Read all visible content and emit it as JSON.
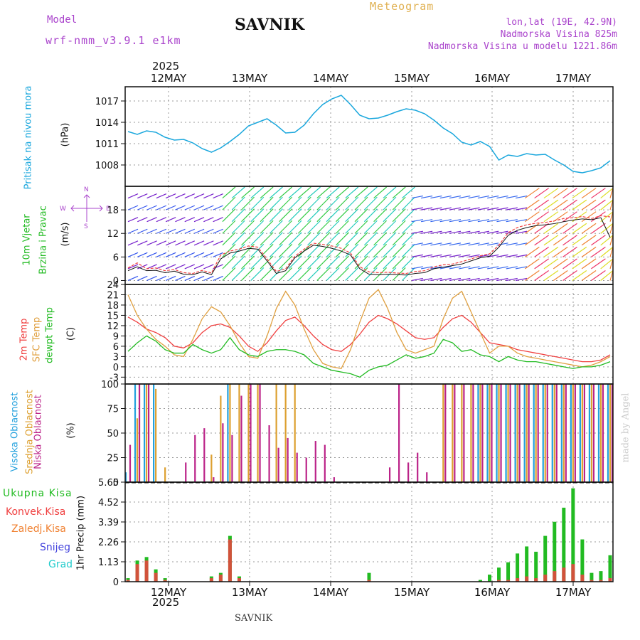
{
  "header": {
    "model_label": "Model",
    "model_name": "wrf-nmm_v3.9.1  e1km",
    "station": "SAVNIK",
    "product": "Meteogram",
    "lonlat": "lon,lat (19E, 42.9N)",
    "altitude": "Nadmorska Visina 825m",
    "model_altitude": "Nadmorska Visina u modelu 1221.86m",
    "year": "2025",
    "footer_station": "SAVNIK",
    "credit": "made by Angel"
  },
  "colors": {
    "pressure": "#1aa7dd",
    "temp2m": "#f04040",
    "sfc": "#e0a040",
    "dew": "#22bb22",
    "high_cloud": "#22a0dd",
    "mid_cloud": "#dda030",
    "low_cloud": "#bb2288",
    "total_precip": "#22bb22",
    "conv_precip": "#f04040",
    "frz_precip": "#f08030",
    "snow": "#4444dd",
    "hail": "#22cccc",
    "model_label": "#aa44cc",
    "product_label": "#e0b050"
  },
  "chart_data": [
    {
      "type": "line",
      "name": "pressure",
      "ylabel_main": "Pritisak na nivou mora",
      "ylabel_unit": "(hPa)",
      "x_ticks": [
        "12MAY",
        "13MAY",
        "14MAY",
        "15MAY",
        "16MAY",
        "17MAY"
      ],
      "ylim": [
        1005,
        1019
      ],
      "yticks": [
        1008,
        1011,
        1014,
        1017
      ],
      "grid": true,
      "series": [
        {
          "values": [
            1012.7,
            1012.3,
            1012.8,
            1012.6,
            1011.9,
            1011.5,
            1011.6,
            1011.1,
            1010.3,
            1009.8,
            1010.4,
            1011.3,
            1012.3,
            1013.5,
            1014.0,
            1014.5,
            1013.6,
            1012.5,
            1012.6,
            1013.6,
            1015.2,
            1016.5,
            1017.3,
            1017.8,
            1016.5,
            1015.0,
            1014.5,
            1014.6,
            1015.0,
            1015.5,
            1015.9,
            1015.7,
            1015.2,
            1014.3,
            1013.2,
            1012.4,
            1011.2,
            1010.8,
            1011.3,
            1010.6,
            1008.7,
            1009.4,
            1009.2,
            1009.6,
            1009.4,
            1009.5,
            1008.7,
            1008.0,
            1007.1,
            1006.9,
            1007.2,
            1007.6,
            1008.6
          ]
        }
      ]
    },
    {
      "type": "line",
      "name": "wind",
      "ylabel_main": "10m Vjetar",
      "ylabel_sub": "Brzina i Pravac",
      "ylabel_unit": "(m/s)",
      "compass": "N",
      "compass_w": "W",
      "compass_e": "E",
      "compass_s": "S",
      "ylim": [
        -1,
        24
      ],
      "yticks": [
        0,
        6,
        12,
        18
      ],
      "grid": true,
      "series": [
        {
          "values": [
            3.2,
            4.5,
            3.0,
            3.2,
            2.5,
            2.8,
            2.0,
            1.8,
            2.6,
            1.9,
            6.5,
            7.5,
            8.0,
            8.8,
            8.5,
            5.5,
            2.3,
            3.0,
            6.2,
            8.0,
            9.5,
            9.2,
            8.8,
            8.2,
            7.0,
            3.5,
            2.2,
            2.0,
            2.1,
            1.9,
            1.8,
            2.3,
            2.5,
            3.5,
            4.0,
            4.2,
            4.8,
            5.5,
            6.3,
            6.8,
            9.0,
            12.2,
            13.5,
            14.2,
            14.6,
            14.8,
            15.2,
            15.8,
            16.0,
            16.3,
            15.8,
            16.5,
            16.2
          ]
        },
        {
          "values": [
            2.5,
            3.5,
            2.5,
            2.6,
            2.0,
            2.4,
            1.6,
            1.5,
            2.2,
            1.5,
            5.5,
            7.0,
            7.5,
            8.2,
            8.0,
            5.0,
            1.8,
            2.5,
            5.8,
            7.5,
            9.0,
            8.7,
            8.2,
            7.5,
            6.5,
            3.0,
            1.6,
            1.5,
            1.6,
            1.5,
            1.4,
            1.8,
            2.0,
            3.0,
            3.4,
            3.8,
            4.2,
            5.0,
            5.8,
            6.2,
            8.5,
            11.5,
            12.8,
            13.5,
            14.0,
            14.2,
            14.5,
            15.0,
            15.4,
            15.7,
            15.5,
            16.0,
            11.0
          ]
        }
      ]
    },
    {
      "type": "line",
      "name": "temperature",
      "ylabel_2m": "2m Temp",
      "ylabel_sfc": "SFC Temp",
      "ylabel_dew": "dewpt Temp",
      "ylabel_unit": "(C)",
      "ylim": [
        -5,
        24
      ],
      "yticks": [
        -3,
        0,
        3,
        6,
        9,
        12,
        15,
        18,
        21,
        24
      ],
      "grid": true,
      "series": [
        {
          "name": "2m Temp",
          "values": [
            14.5,
            13,
            11,
            10,
            8.5,
            6,
            5.5,
            7,
            10,
            12,
            12.5,
            11.5,
            9,
            6,
            4.5,
            7,
            10.5,
            13.5,
            14.5,
            12,
            9,
            6.5,
            5,
            4.5,
            6.5,
            9.5,
            13,
            15,
            14,
            12.5,
            10.5,
            8.5,
            8,
            8.5,
            11.5,
            14,
            15,
            13,
            10,
            7,
            6.5,
            6,
            5,
            4.5,
            4,
            3.5,
            3,
            2.5,
            2,
            1.5,
            1.5,
            2,
            3.5
          ]
        },
        {
          "name": "SFC Temp",
          "values": [
            21,
            15,
            11,
            8,
            6,
            3.5,
            3,
            8,
            14,
            17.5,
            16,
            12,
            7,
            3,
            2.5,
            9,
            17,
            22,
            18,
            11,
            5,
            1,
            0,
            -0.5,
            5,
            13,
            20,
            22.5,
            17,
            10,
            5,
            4,
            5,
            6,
            14,
            20,
            22,
            16,
            10,
            4,
            6,
            6,
            4,
            3,
            2.5,
            2,
            1.5,
            1,
            0.5,
            0,
            0.5,
            1.5,
            3
          ]
        },
        {
          "name": "dewpt Temp",
          "values": [
            4.5,
            7,
            9,
            7.5,
            5,
            4,
            4,
            6.5,
            5,
            4,
            5,
            8.5,
            5,
            3.5,
            3,
            4.5,
            5,
            5,
            4.5,
            3.5,
            1,
            0,
            -1,
            -1.5,
            -2,
            -3,
            -1,
            0,
            0.5,
            2,
            3.5,
            2.5,
            3,
            4,
            8,
            7,
            4.5,
            5,
            3.5,
            3,
            1.5,
            3,
            2,
            1.5,
            1.5,
            1,
            0.5,
            0,
            -0.5,
            0,
            0,
            0.5,
            1.5
          ]
        }
      ]
    },
    {
      "type": "bar",
      "name": "cloudiness",
      "ylabel_high": "Visoka Oblacnost",
      "ylabel_mid": "Srednja Oblacnost",
      "ylabel_low": "Niska Oblacnost",
      "ylabel_unit": "(%)",
      "ylim": [
        0,
        100
      ],
      "yticks": [
        0,
        25,
        50,
        75,
        100
      ],
      "grid": true,
      "series": [
        {
          "name": "Visoka Oblacnost",
          "values": [
            10,
            100,
            100,
            100,
            0,
            0,
            0,
            0,
            0,
            0,
            0,
            100,
            0,
            0,
            0,
            0,
            0,
            0,
            0,
            0,
            0,
            0,
            0,
            0,
            0,
            0,
            0,
            0,
            0,
            0,
            0,
            0,
            0,
            0,
            0,
            0,
            0,
            0,
            100,
            100,
            100,
            100,
            100,
            100,
            100,
            100,
            100,
            100,
            100,
            100,
            100,
            100,
            100
          ]
        },
        {
          "name": "Srednja Oblacnost",
          "values": [
            0,
            65,
            100,
            95,
            15,
            0,
            0,
            0,
            0,
            28,
            88,
            100,
            100,
            100,
            100,
            0,
            100,
            100,
            100,
            0,
            0,
            0,
            0,
            0,
            0,
            0,
            0,
            0,
            0,
            0,
            0,
            0,
            0,
            0,
            100,
            100,
            100,
            100,
            100,
            100,
            100,
            100,
            100,
            100,
            100,
            100,
            100,
            100,
            100,
            100,
            100,
            100,
            100
          ]
        },
        {
          "name": "Niska Oblacnost",
          "values": [
            38,
            100,
            100,
            0,
            0,
            0,
            20,
            48,
            55,
            5,
            60,
            48,
            88,
            100,
            100,
            58,
            35,
            45,
            30,
            25,
            42,
            38,
            5,
            0,
            0,
            0,
            0,
            0,
            15,
            100,
            20,
            30,
            10,
            0,
            100,
            100,
            100,
            100,
            100,
            100,
            100,
            100,
            100,
            100,
            100,
            100,
            100,
            100,
            100,
            100,
            100,
            100,
            100
          ]
        }
      ]
    },
    {
      "type": "bar",
      "name": "precipitation",
      "ylabel_total": "Ukupna Kisa",
      "ylabel_conv": "Konvek.Kisa",
      "ylabel_frz": "Zaledj.Kisa",
      "ylabel_snow": "Snijeg",
      "ylabel_hail": "Grad",
      "ylabel_unit": "1hr Precip (mm)",
      "ylim": [
        0,
        5.65
      ],
      "yticks": [
        0,
        1.13,
        2.26,
        3.39,
        4.52,
        5.65
      ],
      "grid": true,
      "series": [
        {
          "name": "Ukupna Kisa",
          "values": [
            0.2,
            1.2,
            1.4,
            0.7,
            0.2,
            0,
            0,
            0,
            0,
            0.3,
            0.5,
            2.6,
            0.3,
            0,
            0,
            0,
            0,
            0,
            0,
            0,
            0,
            0,
            0,
            0,
            0,
            0,
            0.5,
            0,
            0,
            0,
            0,
            0,
            0,
            0,
            0,
            0,
            0,
            0,
            0.1,
            0.4,
            0.8,
            1.1,
            1.6,
            2.0,
            1.7,
            2.6,
            3.4,
            4.2,
            5.3,
            2.4,
            0.5,
            0.6,
            1.5
          ]
        },
        {
          "name": "Konvek.Kisa",
          "values": [
            0.1,
            1.0,
            1.2,
            0.5,
            0.1,
            0,
            0,
            0,
            0,
            0.2,
            0.4,
            2.4,
            0.2,
            0,
            0,
            0,
            0,
            0,
            0,
            0,
            0,
            0,
            0,
            0,
            0,
            0,
            0.1,
            0,
            0,
            0,
            0,
            0,
            0,
            0,
            0,
            0,
            0,
            0,
            0,
            0,
            0.1,
            0.1,
            0.2,
            0.3,
            0.2,
            0.4,
            0.6,
            0.8,
            1.0,
            0.4,
            0.1,
            0.1,
            0.2
          ]
        }
      ]
    }
  ]
}
